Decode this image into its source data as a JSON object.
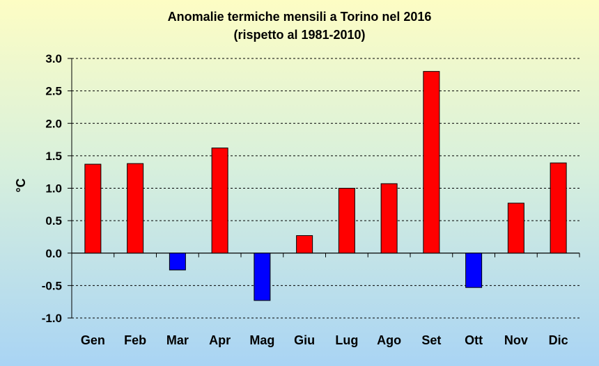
{
  "chart_data": {
    "type": "bar",
    "title": "Anomalie termiche mensili a Torino nel 2016",
    "subtitle": "(rispetto al 1981-2010)",
    "xlabel": "",
    "ylabel": "°C",
    "ylim": [
      -1.0,
      3.0
    ],
    "yticks": [
      "3.0",
      "2.5",
      "2.0",
      "1.5",
      "1.0",
      "0.5",
      "0.0",
      "-0.5",
      "-1.0"
    ],
    "ytick_values": [
      3.0,
      2.5,
      2.0,
      1.5,
      1.0,
      0.5,
      0.0,
      -0.5,
      -1.0
    ],
    "categories": [
      "Gen",
      "Feb",
      "Mar",
      "Apr",
      "Mag",
      "Giu",
      "Lug",
      "Ago",
      "Set",
      "Ott",
      "Nov",
      "Dic"
    ],
    "values": [
      1.37,
      1.38,
      -0.26,
      1.62,
      -0.73,
      0.27,
      1.0,
      1.07,
      2.8,
      -0.53,
      0.77,
      1.39
    ],
    "grid": true,
    "colors": {
      "positive": "#ff0000",
      "negative": "#0000ff",
      "grid": "#000000"
    }
  }
}
